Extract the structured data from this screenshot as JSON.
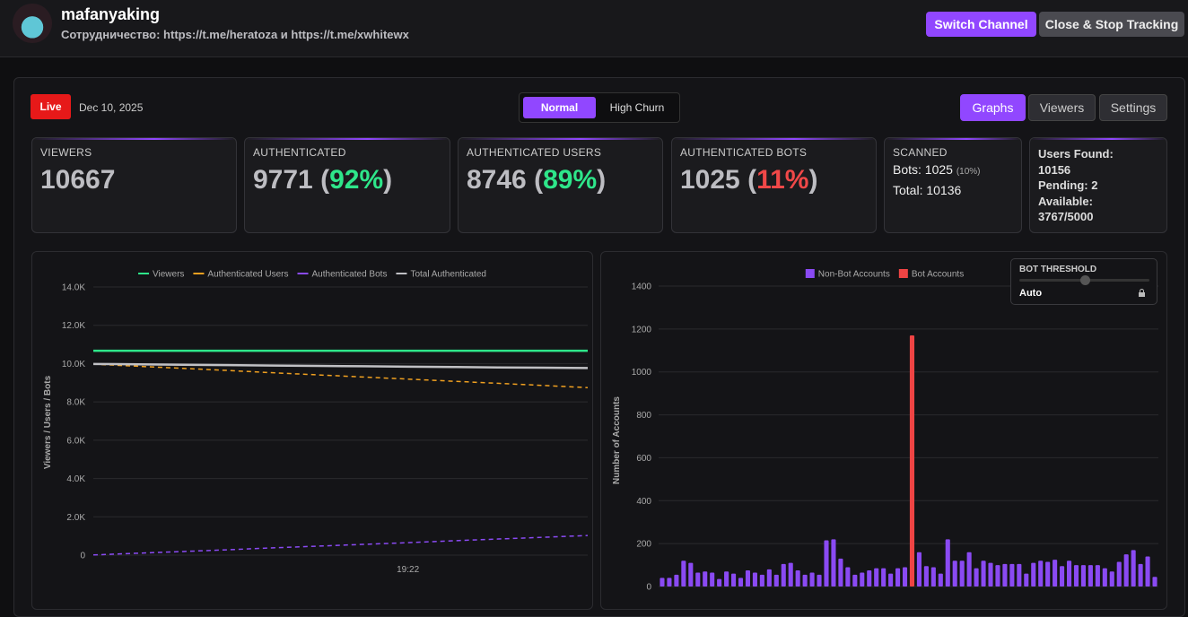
{
  "header": {
    "channel": "mafanyaking",
    "description": "Сотрудничество: https://t.me/heratoza и https://t.me/xwhitewx",
    "buttons": [
      "Switch Channel",
      "Close & Stop Tracking"
    ]
  },
  "toolbar": {
    "status": "Live",
    "date": "Dec 10, 2025",
    "modes": [
      "Normal",
      "High Churn"
    ],
    "tabs": [
      "Graphs",
      "Viewers",
      "Settings"
    ]
  },
  "stats": [
    {
      "label": "VIEWERS",
      "value": "10667"
    },
    {
      "label": "AUTHENTICATED",
      "value": "9771",
      "percent": "92%",
      "percent_color": "#2ee68a"
    },
    {
      "label": "AUTHENTICATED USERS",
      "value": "8746",
      "percent": "89%",
      "percent_color": "#2ee68a"
    },
    {
      "label": "AUTHENTICATED BOTS",
      "value": "1025",
      "percent": "11%",
      "percent_color": "#f04848"
    }
  ],
  "scanned": {
    "title": "SCANNED",
    "bots": "Bots: 1025",
    "bots_percent": "(10%)",
    "total": "Total: 10136"
  },
  "users_found": [
    "Users Found:",
    "10156",
    "Pending: 2",
    "Available:",
    "3767/5000"
  ],
  "threshold": {
    "title": "BOT THRESHOLD",
    "mode": "Auto"
  },
  "chart_data": [
    {
      "type": "line",
      "y_label": "Viewers / Users / Bots",
      "categories": [
        null,
        null,
        null,
        null,
        null,
        null,
        null,
        "19:22",
        null,
        null,
        null,
        null
      ],
      "ylim": [
        0,
        14000
      ],
      "yticks": [
        0,
        {
          "value": 2000,
          "label": "2.0K"
        },
        {
          "value": 4000,
          "label": "4.0K"
        },
        {
          "value": 6000,
          "label": "6.0K"
        },
        {
          "value": 8000,
          "label": "8.0K"
        },
        {
          "value": 10000,
          "label": "10.0K"
        },
        {
          "value": 12000,
          "label": "12.0K"
        },
        {
          "value": 14000,
          "label": "14.0K"
        }
      ],
      "grid": true,
      "series": [
        {
          "name": "Viewers",
          "color": "#2ee68a",
          "dashed": false,
          "values": [
            10667,
            10667,
            10667,
            10667,
            10667,
            10667,
            10667,
            10667,
            10667,
            10667,
            10667,
            10667
          ]
        },
        {
          "name": "Authenticated Users",
          "color": "#f0a020",
          "dashed": true,
          "values": [
            9970,
            9860,
            9750,
            9640,
            9520,
            9410,
            9300,
            9190,
            9080,
            8970,
            8860,
            8746
          ]
        },
        {
          "name": "Authenticated Bots",
          "color": "#8a4af3",
          "dashed": true,
          "values": [
            10,
            100,
            190,
            280,
            380,
            470,
            560,
            650,
            750,
            840,
            930,
            1025
          ]
        },
        {
          "name": "Total Authenticated",
          "color": "#c0c0c4",
          "dashed": false,
          "values": [
            9980,
            9960,
            9940,
            9920,
            9900,
            9880,
            9860,
            9840,
            9820,
            9800,
            9785,
            9771
          ]
        }
      ]
    },
    {
      "type": "bar",
      "y_label": "Number of Accounts",
      "categories": [
        null,
        null,
        null,
        null,
        null,
        null,
        null,
        null,
        null,
        null,
        null,
        null,
        null,
        null,
        null,
        null,
        null,
        null,
        null,
        null,
        null,
        null,
        null,
        null,
        null,
        null,
        null,
        null,
        null,
        null,
        null,
        null,
        null,
        null,
        null,
        null,
        null,
        null,
        null,
        null,
        null,
        null,
        null,
        null,
        null,
        null,
        null,
        null,
        null,
        null,
        null,
        null,
        null,
        null,
        null,
        null,
        null,
        null,
        null,
        null,
        null,
        null,
        null,
        null,
        null,
        null,
        null,
        null,
        null,
        null
      ],
      "ylim": [
        0,
        1400
      ],
      "yticks": [
        0,
        200,
        400,
        600,
        800,
        1000,
        1200,
        1400
      ],
      "grid": true,
      "series": [
        {
          "name": "Non-Bot Accounts",
          "color": "#8a4af3",
          "values": [
            40,
            40,
            55,
            120,
            110,
            65,
            70,
            65,
            35,
            70,
            60,
            40,
            75,
            65,
            55,
            80,
            55,
            105,
            110,
            75,
            55,
            65,
            55,
            215,
            220,
            130,
            90,
            55,
            65,
            75,
            85,
            85,
            60,
            85,
            90,
            null,
            160,
            95,
            90,
            60,
            220,
            120,
            120,
            160,
            85,
            120,
            110,
            100,
            105,
            105,
            105,
            60,
            110,
            120,
            115,
            125,
            95,
            120,
            100,
            100,
            100,
            100,
            85,
            70,
            115,
            150,
            170,
            105,
            140,
            45
          ]
        },
        {
          "name": "Bot Accounts",
          "color": "#ef4444",
          "values": [
            null,
            null,
            null,
            null,
            null,
            null,
            null,
            null,
            null,
            null,
            null,
            null,
            null,
            null,
            null,
            null,
            null,
            null,
            null,
            null,
            null,
            null,
            null,
            null,
            null,
            null,
            null,
            null,
            null,
            null,
            null,
            null,
            null,
            null,
            null,
            1170,
            null,
            null,
            null,
            null,
            null,
            null,
            null,
            null,
            null,
            null,
            null,
            null,
            null,
            null,
            null,
            null,
            null,
            null,
            null,
            null,
            null,
            null,
            null,
            null,
            null,
            null,
            null,
            null,
            null,
            null,
            null,
            null,
            null,
            null
          ]
        }
      ]
    }
  ]
}
